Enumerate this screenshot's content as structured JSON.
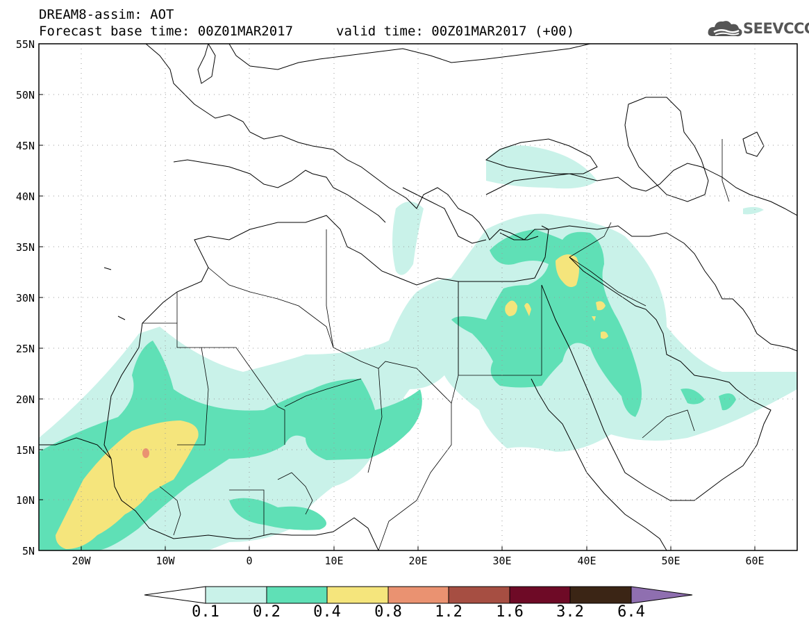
{
  "header": {
    "title_line1": "DREAM8-assim: AOT",
    "title_line2": "Forecast base time: 00Z01MAR2017",
    "valid_time": "valid time: 00Z01MAR2017 (+00)",
    "logo_text": "SEEVCCC"
  },
  "map": {
    "lat_labels": [
      "55N",
      "50N",
      "45N",
      "40N",
      "35N",
      "30N",
      "25N",
      "20N",
      "15N",
      "10N",
      "5N"
    ],
    "lon_labels": [
      "20W",
      "10W",
      "0",
      "10E",
      "20E",
      "30E",
      "40E",
      "50E",
      "60E"
    ],
    "lon_range": [
      -25,
      65
    ],
    "lat_range": [
      5,
      55
    ],
    "gridlines": "dotted"
  },
  "colorbar": {
    "labels": [
      "0.1",
      "0.2",
      "0.4",
      "0.8",
      "1.2",
      "1.6",
      "3.2",
      "6.4"
    ],
    "colors": [
      "#ffffff",
      "#c9f2e9",
      "#5fe0b6",
      "#f5e57c",
      "#ea9271",
      "#a64e42",
      "#6e0a26",
      "#3b2515",
      "#8f6fb0"
    ]
  }
}
